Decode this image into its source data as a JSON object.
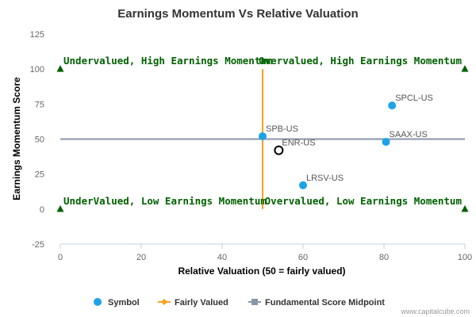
{
  "chart_data": {
    "type": "scatter",
    "title": "Earnings Momentum Vs Relative Valuation",
    "xlabel": "Relative Valuation (50 = fairly valued)",
    "ylabel": "Earnings Momentum Score",
    "xlim": [
      0,
      100
    ],
    "ylim": [
      -25,
      125
    ],
    "x_ticks": [
      0,
      20,
      40,
      60,
      80,
      100
    ],
    "y_ticks": [
      -25,
      0,
      25,
      50,
      75,
      100,
      125
    ],
    "grid": false,
    "legend_position": "bottom",
    "points": [
      {
        "label": "SPCL-US",
        "x": 82,
        "y": 74
      },
      {
        "label": "SPB-US",
        "x": 50,
        "y": 52
      },
      {
        "label": "SAAX-US",
        "x": 80.5,
        "y": 48
      },
      {
        "label": "ENR-US",
        "x": 54,
        "y": 42,
        "highlight": true
      },
      {
        "label": "LRSV-US",
        "x": 60,
        "y": 17
      }
    ],
    "fairly_valued_x": 50,
    "midpoint_y": 50,
    "corner_markers": [
      {
        "x": 0,
        "y": 100
      },
      {
        "x": 100,
        "y": 100
      },
      {
        "x": 0,
        "y": 0
      },
      {
        "x": 100,
        "y": 0
      }
    ],
    "quadrant_labels": {
      "top_left": "Undervalued, High Earnings Momentum",
      "top_right": "Overvalued, High Earnings Momentum",
      "bottom_left": "UnderValued, Low Earnings Momentum",
      "bottom_right": "Overvalued, Low Earnings Momentum"
    },
    "legend": [
      {
        "name": "Symbol",
        "kind": "dot"
      },
      {
        "name": "Fairly Valued",
        "kind": "diamond-line"
      },
      {
        "name": "Fundamental Score Midpoint",
        "kind": "square-line"
      }
    ],
    "colors": {
      "point": "#1ea3e6",
      "fairly_valued": "#f7a21e",
      "midpoint": "#8a96a8",
      "quadrant_text": "#006100",
      "marker": "#006100"
    }
  },
  "watermark": "www.capitalcube.com"
}
